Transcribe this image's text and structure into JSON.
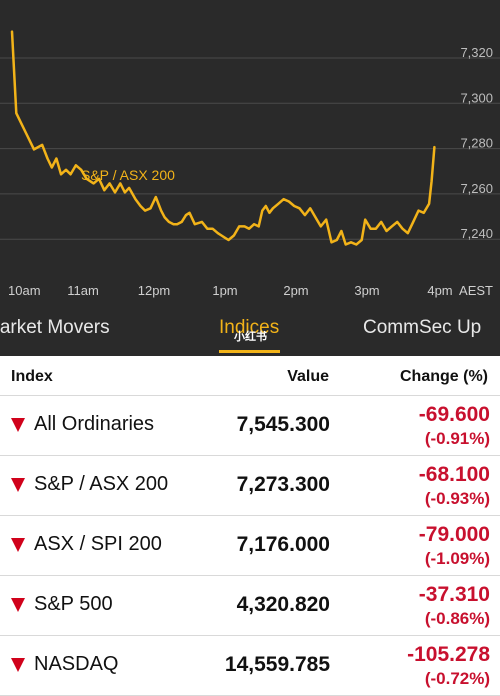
{
  "chart_data": {
    "type": "line",
    "series": [
      {
        "name": "S&P / ASX 200",
        "color": "#f2b319",
        "points": [
          [
            0.0,
            7329
          ],
          [
            0.12,
            7293
          ],
          [
            0.4,
            7284
          ],
          [
            0.62,
            7277
          ],
          [
            0.85,
            7279
          ],
          [
            1.0,
            7273
          ],
          [
            1.12,
            7269
          ],
          [
            1.25,
            7273
          ],
          [
            1.38,
            7266
          ],
          [
            1.52,
            7268
          ],
          [
            1.65,
            7266
          ],
          [
            1.8,
            7270
          ],
          [
            1.95,
            7268
          ],
          [
            2.1,
            7264
          ],
          [
            2.3,
            7262
          ],
          [
            2.45,
            7264
          ],
          [
            2.6,
            7259
          ],
          [
            2.75,
            7262
          ],
          [
            2.9,
            7258
          ],
          [
            3.05,
            7262
          ],
          [
            3.18,
            7258
          ],
          [
            3.3,
            7260
          ],
          [
            3.48,
            7255
          ],
          [
            3.62,
            7252
          ],
          [
            3.75,
            7250
          ],
          [
            3.9,
            7251
          ],
          [
            4.05,
            7256
          ],
          [
            4.2,
            7250
          ],
          [
            4.3,
            7247
          ],
          [
            4.42,
            7245
          ],
          [
            4.55,
            7244
          ],
          [
            4.65,
            7244
          ],
          [
            4.78,
            7245
          ],
          [
            4.9,
            7248
          ],
          [
            5.0,
            7249
          ],
          [
            5.15,
            7244
          ],
          [
            5.35,
            7245
          ],
          [
            5.5,
            7242
          ],
          [
            5.65,
            7242
          ],
          [
            5.8,
            7240
          ],
          [
            5.9,
            7239
          ],
          [
            6.0,
            7238
          ],
          [
            6.1,
            7237
          ],
          [
            6.25,
            7239
          ],
          [
            6.4,
            7243
          ],
          [
            6.55,
            7243
          ],
          [
            6.68,
            7242
          ],
          [
            6.82,
            7244
          ],
          [
            6.95,
            7243
          ],
          [
            7.05,
            7250
          ],
          [
            7.15,
            7252
          ],
          [
            7.25,
            7249
          ],
          [
            7.35,
            7251
          ],
          [
            7.5,
            7253
          ],
          [
            7.65,
            7255
          ],
          [
            7.8,
            7254
          ],
          [
            7.95,
            7252
          ],
          [
            8.1,
            7251
          ],
          [
            8.25,
            7248
          ],
          [
            8.4,
            7251
          ],
          [
            8.55,
            7247
          ],
          [
            8.7,
            7243
          ],
          [
            8.85,
            7246
          ],
          [
            9.0,
            7236
          ],
          [
            9.15,
            7237
          ],
          [
            9.28,
            7241
          ],
          [
            9.4,
            7235
          ],
          [
            9.55,
            7236
          ],
          [
            9.7,
            7235
          ],
          [
            9.85,
            7237
          ],
          [
            9.95,
            7246
          ],
          [
            10.1,
            7242
          ],
          [
            10.25,
            7242
          ],
          [
            10.4,
            7245
          ],
          [
            10.55,
            7241
          ],
          [
            10.7,
            7243
          ],
          [
            10.85,
            7245
          ],
          [
            11.0,
            7242
          ],
          [
            11.15,
            7240
          ],
          [
            11.3,
            7245
          ],
          [
            11.45,
            7250
          ],
          [
            11.6,
            7249
          ],
          [
            11.75,
            7253
          ],
          [
            11.82,
            7263
          ],
          [
            11.9,
            7278
          ]
        ]
      }
    ],
    "x_ticks": [
      {
        "x": 0,
        "label": "10am"
      },
      {
        "x": 2,
        "label": "11am"
      },
      {
        "x": 4,
        "label": "12pm"
      },
      {
        "x": 6,
        "label": "1pm"
      },
      {
        "x": 8,
        "label": "2pm"
      },
      {
        "x": 10,
        "label": "3pm"
      },
      {
        "x": 12,
        "label": "4pm"
      }
    ],
    "x_unit": "AEST",
    "xlim": [
      0,
      12
    ],
    "y_ticks": [
      "7,320",
      "7,300",
      "7,280",
      "7,260",
      "7,240"
    ],
    "y_tick_values": [
      7320,
      7300,
      7280,
      7260,
      7240
    ],
    "ylim": [
      7222,
      7335
    ],
    "grid": true,
    "series_label": "S&P / ASX 200"
  },
  "tabs": [
    {
      "label": "Market Movers",
      "active": false
    },
    {
      "label": "Indices",
      "active": true
    },
    {
      "label": "CommSec Up",
      "active": false
    }
  ],
  "watermark": "小红书",
  "table": {
    "headers": {
      "index": "Index",
      "value": "Value",
      "change": "Change (%)"
    },
    "rows": [
      {
        "name": "All Ordinaries",
        "value": "7,545.300",
        "change": "-69.600",
        "pct": "(-0.91%)"
      },
      {
        "name": "S&P / ASX 200",
        "value": "7,273.300",
        "change": "-68.100",
        "pct": "(-0.93%)"
      },
      {
        "name": "ASX / SPI 200",
        "value": "7,176.000",
        "change": "-79.000",
        "pct": "(-1.09%)"
      },
      {
        "name": "S&P 500",
        "value": "4,320.820",
        "change": "-37.310",
        "pct": "(-0.86%)"
      },
      {
        "name": "NASDAQ",
        "value": "14,559.785",
        "change": "-105.278",
        "pct": "(-0.72%)"
      }
    ]
  },
  "colors": {
    "accent": "#f2b319",
    "negative": "#c8102e",
    "arrow": "#d0021b",
    "chart_bg": "#2a2a2a"
  }
}
